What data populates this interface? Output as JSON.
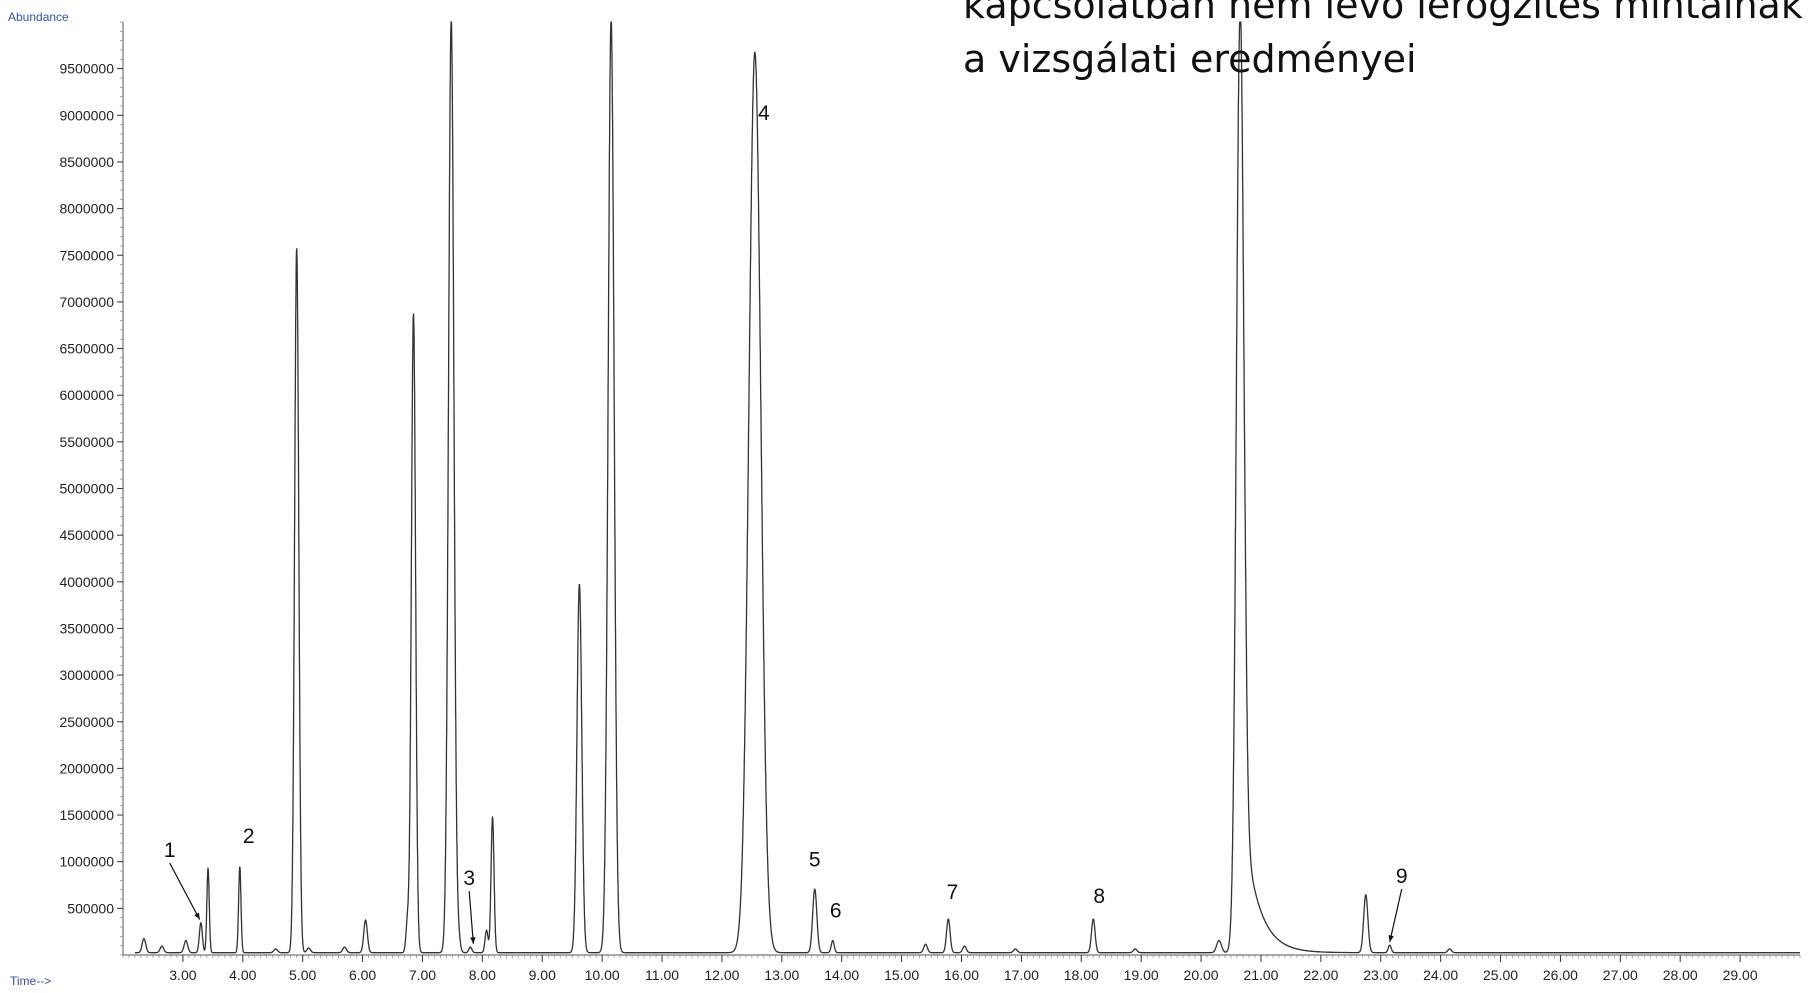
{
  "title_lines": [
    "kapcsolatban nem levő lerögzítés mintáinak",
    "a vizsgálati  eredményei"
  ],
  "chart_data": {
    "type": "line",
    "ylabel": "Abundance",
    "xlabel": "Time-->",
    "xlim": [
      2.0,
      30.0
    ],
    "ylim": [
      0,
      10000000
    ],
    "y_ticks": [
      500000,
      1000000,
      1500000,
      2000000,
      2500000,
      3000000,
      3500000,
      4000000,
      4500000,
      5000000,
      5500000,
      6000000,
      6500000,
      7000000,
      7500000,
      8000000,
      8500000,
      9000000,
      9500000
    ],
    "x_ticks": [
      "3.00",
      "4.00",
      "5.00",
      "6.00",
      "7.00",
      "8.00",
      "9.00",
      "10.00",
      "11.00",
      "12.00",
      "13.00",
      "14.00",
      "15.00",
      "16.00",
      "17.00",
      "18.00",
      "19.00",
      "20.00",
      "21.00",
      "22.00",
      "23.00",
      "24.00",
      "25.00",
      "26.00",
      "27.00",
      "28.00",
      "29.00"
    ],
    "color": "#333333",
    "peaks": [
      {
        "t": 2.35,
        "h": 150000,
        "w": 0.03
      },
      {
        "t": 2.65,
        "h": 70000,
        "w": 0.03
      },
      {
        "t": 3.05,
        "h": 130000,
        "w": 0.03
      },
      {
        "t": 3.3,
        "h": 320000,
        "w": 0.025
      },
      {
        "t": 3.42,
        "h": 900000,
        "w": 0.02
      },
      {
        "t": 3.95,
        "h": 920000,
        "w": 0.02
      },
      {
        "t": 4.55,
        "h": 40000,
        "w": 0.03
      },
      {
        "t": 4.9,
        "h": 7550000,
        "w": 0.035
      },
      {
        "t": 5.1,
        "h": 50000,
        "w": 0.03
      },
      {
        "t": 5.7,
        "h": 60000,
        "w": 0.03
      },
      {
        "t": 6.05,
        "h": 350000,
        "w": 0.03
      },
      {
        "t": 6.75,
        "h": 330000,
        "w": 0.025
      },
      {
        "t": 6.85,
        "h": 6850000,
        "w": 0.035
      },
      {
        "t": 7.48,
        "h": 10000000,
        "w": 0.045
      },
      {
        "t": 7.6,
        "h": 150000,
        "w": 0.03
      },
      {
        "t": 7.8,
        "h": 60000,
        "w": 0.025
      },
      {
        "t": 8.07,
        "h": 240000,
        "w": 0.025
      },
      {
        "t": 8.17,
        "h": 1450000,
        "w": 0.025
      },
      {
        "t": 9.62,
        "h": 3950000,
        "w": 0.04
      },
      {
        "t": 10.15,
        "h": 10000000,
        "w": 0.05
      },
      {
        "t": 12.55,
        "h": 9650000,
        "w": 0.1
      },
      {
        "t": 13.55,
        "h": 680000,
        "w": 0.035
      },
      {
        "t": 13.85,
        "h": 130000,
        "w": 0.025
      },
      {
        "t": 15.4,
        "h": 90000,
        "w": 0.03
      },
      {
        "t": 15.78,
        "h": 360000,
        "w": 0.03
      },
      {
        "t": 16.05,
        "h": 70000,
        "w": 0.03
      },
      {
        "t": 16.9,
        "h": 40000,
        "w": 0.03
      },
      {
        "t": 18.2,
        "h": 360000,
        "w": 0.03
      },
      {
        "t": 18.9,
        "h": 40000,
        "w": 0.03
      },
      {
        "t": 20.3,
        "h": 130000,
        "w": 0.04
      },
      {
        "t": 20.65,
        "h": 10000000,
        "w": 0.06
      },
      {
        "t": 22.75,
        "h": 620000,
        "w": 0.035
      },
      {
        "t": 23.15,
        "h": 80000,
        "w": 0.025
      },
      {
        "t": 24.15,
        "h": 40000,
        "w": 0.03
      }
    ],
    "annotations": [
      {
        "label": "1",
        "t": 2.78,
        "y": 1050000,
        "arrow_to": {
          "t": 3.28,
          "y": 380000
        }
      },
      {
        "label": "2",
        "t": 4.1,
        "y": 1200000
      },
      {
        "label": "3",
        "t": 7.78,
        "y": 750000,
        "arrow_to": {
          "t": 7.85,
          "y": 120000
        }
      },
      {
        "label": "4",
        "t": 12.7,
        "y": 8950000
      },
      {
        "label": "5",
        "t": 13.55,
        "y": 950000
      },
      {
        "label": "6",
        "t": 13.9,
        "y": 400000
      },
      {
        "label": "7",
        "t": 15.85,
        "y": 600000
      },
      {
        "label": "8",
        "t": 18.3,
        "y": 560000
      },
      {
        "label": "9",
        "t": 23.35,
        "y": 770000,
        "arrow_to": {
          "t": 23.15,
          "y": 140000
        }
      }
    ]
  }
}
